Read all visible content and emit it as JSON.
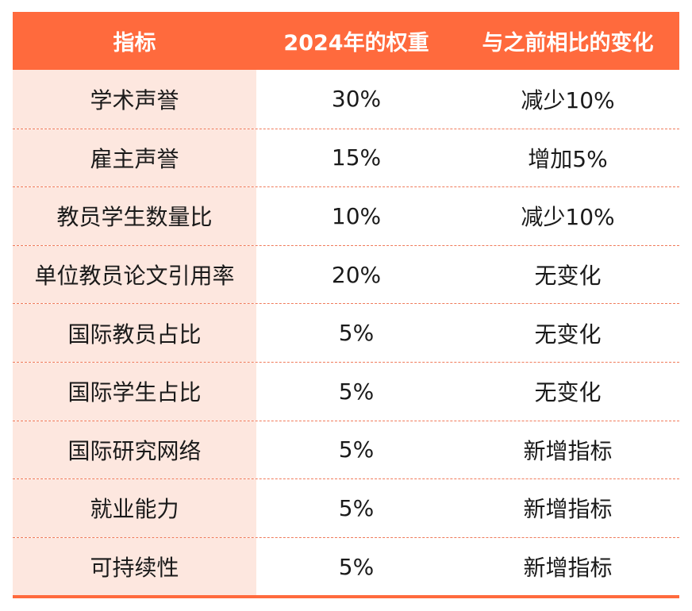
{
  "header": {
    "col1": "指标",
    "col2": "2024年的权重",
    "col3": "与之前相比的变化"
  },
  "rows": [
    {
      "indicator": "学术声誉",
      "weight": "30%",
      "change": "减少10%"
    },
    {
      "indicator": "雇主声誉",
      "weight": "15%",
      "change": "增加5%"
    },
    {
      "indicator": "教员学生数量比",
      "weight": "10%",
      "change": "减少10%"
    },
    {
      "indicator": "单位教员论文引用率",
      "weight": "20%",
      "change": "无变化"
    },
    {
      "indicator": "国际教员占比",
      "weight": "5%",
      "change": "无变化"
    },
    {
      "indicator": "国际学生占比",
      "weight": "5%",
      "change": "无变化"
    },
    {
      "indicator": "国际研究网络",
      "weight": "5%",
      "change": "新增指标"
    },
    {
      "indicator": "就业能力",
      "weight": "5%",
      "change": "新增指标"
    },
    {
      "indicator": "可持续性",
      "weight": "5%",
      "change": "新增指标"
    }
  ],
  "colors": {
    "header_bg": "#ff6a3d",
    "first_col_bg": "#fde7df",
    "divider": "#f07b5b"
  }
}
